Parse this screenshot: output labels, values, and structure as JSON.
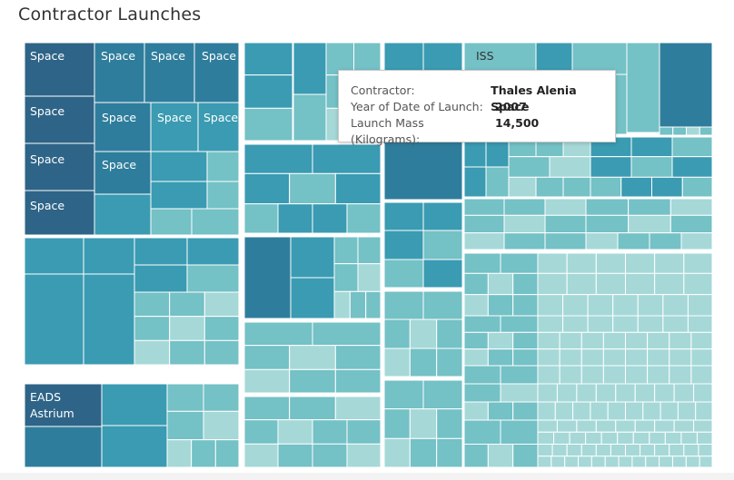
{
  "title": "Contractor Launches",
  "colors": {
    "darkest": "#2e6487",
    "dark": "#2f7d9c",
    "mid": "#3a9bb2",
    "light": "#74c1c6",
    "lightest": "#a6d8d8"
  },
  "tooltip": {
    "rows": [
      {
        "key": "Contractor:",
        "value": "Thales Alenia Space"
      },
      {
        "key": "Year of Date of Launch:",
        "value": "2007"
      },
      {
        "key": "Launch Mass (Kilograms):",
        "value": "14,500"
      }
    ]
  },
  "chart_data": {
    "type": "treemap",
    "title": "Contractor Launches",
    "size_measure": "Launch Mass (Kilograms)",
    "color_measure": "Launch Mass (Kilograms)",
    "labeled_cells": [
      {
        "label": "Space"
      },
      {
        "label": "Space"
      },
      {
        "label": "Space"
      },
      {
        "label": "Space"
      },
      {
        "label": "Space"
      },
      {
        "label": "Space"
      },
      {
        "label": "Space"
      },
      {
        "label": "Space"
      },
      {
        "label": "Space"
      },
      {
        "label": "Space"
      },
      {
        "label": "Space"
      },
      {
        "label": "EADS Astrium"
      },
      {
        "label": "ISS"
      }
    ],
    "highlighted": {
      "contractor": "Thales Alenia Space",
      "year": 2007,
      "launch_mass_kg": 14500
    }
  }
}
